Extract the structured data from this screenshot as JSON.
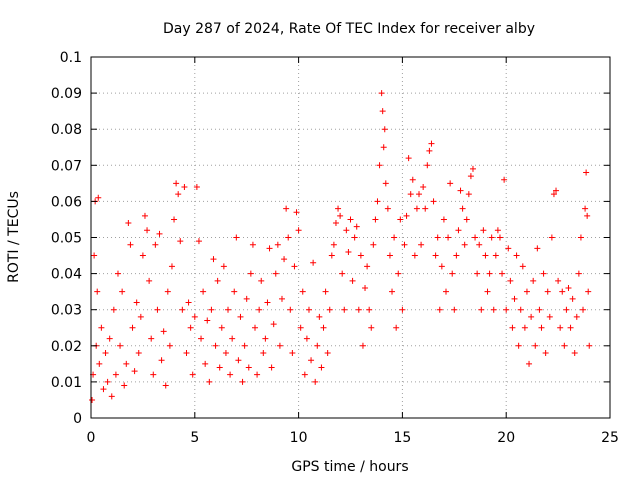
{
  "chart_data": {
    "type": "scatter",
    "title": "Day 287 of 2024, Rate Of TEC Index for receiver alby",
    "xlabel": "GPS time / hours",
    "ylabel": "ROTI / TECUs",
    "xlim": [
      0,
      25
    ],
    "ylim": [
      0,
      0.1
    ],
    "x_ticks": [
      0,
      5,
      10,
      15,
      20,
      25
    ],
    "y_ticks": [
      0,
      0.01,
      0.02,
      0.03,
      0.04,
      0.05,
      0.06,
      0.07,
      0.08,
      0.09,
      0.1
    ],
    "x_tick_labels": [
      "0",
      "5",
      "10",
      "15",
      "20",
      "25"
    ],
    "y_tick_labels": [
      "0",
      "0.01",
      "0.02",
      "0.03",
      "0.04",
      "0.05",
      "0.06",
      "0.07",
      "0.08",
      "0.09",
      "0.1"
    ],
    "grid": true,
    "marker": "+",
    "color": "#ff0000",
    "series": [
      {
        "points": [
          [
            0.05,
            0.005
          ],
          [
            0.1,
            0.012
          ],
          [
            0.15,
            0.045
          ],
          [
            0.2,
            0.06
          ],
          [
            0.25,
            0.02
          ],
          [
            0.3,
            0.035
          ],
          [
            0.35,
            0.061
          ],
          [
            0.4,
            0.015
          ],
          [
            0.5,
            0.025
          ],
          [
            0.6,
            0.008
          ],
          [
            0.7,
            0.018
          ],
          [
            0.8,
            0.01
          ],
          [
            0.9,
            0.022
          ],
          [
            1.0,
            0.006
          ],
          [
            1.1,
            0.03
          ],
          [
            1.2,
            0.012
          ],
          [
            1.3,
            0.04
          ],
          [
            1.4,
            0.02
          ],
          [
            1.5,
            0.035
          ],
          [
            1.6,
            0.009
          ],
          [
            1.7,
            0.015
          ],
          [
            1.8,
            0.054
          ],
          [
            1.9,
            0.048
          ],
          [
            2.0,
            0.025
          ],
          [
            2.1,
            0.013
          ],
          [
            2.2,
            0.032
          ],
          [
            2.3,
            0.018
          ],
          [
            2.4,
            0.028
          ],
          [
            2.5,
            0.045
          ],
          [
            2.6,
            0.056
          ],
          [
            2.7,
            0.052
          ],
          [
            2.8,
            0.038
          ],
          [
            2.9,
            0.022
          ],
          [
            3.0,
            0.012
          ],
          [
            3.1,
            0.048
          ],
          [
            3.2,
            0.03
          ],
          [
            3.3,
            0.051
          ],
          [
            3.4,
            0.016
          ],
          [
            3.5,
            0.024
          ],
          [
            3.6,
            0.009
          ],
          [
            3.7,
            0.035
          ],
          [
            3.8,
            0.02
          ],
          [
            3.9,
            0.042
          ],
          [
            4.0,
            0.055
          ],
          [
            4.1,
            0.065
          ],
          [
            4.2,
            0.062
          ],
          [
            4.3,
            0.049
          ],
          [
            4.4,
            0.03
          ],
          [
            4.5,
            0.064
          ],
          [
            4.6,
            0.018
          ],
          [
            4.7,
            0.032
          ],
          [
            4.8,
            0.025
          ],
          [
            4.9,
            0.012
          ],
          [
            5.0,
            0.028
          ],
          [
            5.1,
            0.064
          ],
          [
            5.2,
            0.049
          ],
          [
            5.3,
            0.022
          ],
          [
            5.4,
            0.035
          ],
          [
            5.5,
            0.015
          ],
          [
            5.6,
            0.027
          ],
          [
            5.7,
            0.01
          ],
          [
            5.8,
            0.03
          ],
          [
            5.9,
            0.044
          ],
          [
            6.0,
            0.02
          ],
          [
            6.1,
            0.038
          ],
          [
            6.2,
            0.014
          ],
          [
            6.3,
            0.025
          ],
          [
            6.4,
            0.042
          ],
          [
            6.5,
            0.018
          ],
          [
            6.6,
            0.03
          ],
          [
            6.7,
            0.012
          ],
          [
            6.8,
            0.022
          ],
          [
            6.9,
            0.035
          ],
          [
            7.0,
            0.05
          ],
          [
            7.1,
            0.016
          ],
          [
            7.2,
            0.028
          ],
          [
            7.3,
            0.01
          ],
          [
            7.4,
            0.02
          ],
          [
            7.5,
            0.033
          ],
          [
            7.6,
            0.014
          ],
          [
            7.7,
            0.04
          ],
          [
            7.8,
            0.048
          ],
          [
            7.9,
            0.025
          ],
          [
            8.0,
            0.012
          ],
          [
            8.1,
            0.03
          ],
          [
            8.2,
            0.038
          ],
          [
            8.3,
            0.018
          ],
          [
            8.4,
            0.022
          ],
          [
            8.5,
            0.032
          ],
          [
            8.6,
            0.047
          ],
          [
            8.7,
            0.014
          ],
          [
            8.8,
            0.026
          ],
          [
            8.9,
            0.04
          ],
          [
            9.0,
            0.048
          ],
          [
            9.1,
            0.02
          ],
          [
            9.2,
            0.033
          ],
          [
            9.3,
            0.044
          ],
          [
            9.4,
            0.058
          ],
          [
            9.5,
            0.05
          ],
          [
            9.6,
            0.03
          ],
          [
            9.7,
            0.018
          ],
          [
            9.8,
            0.042
          ],
          [
            9.9,
            0.057
          ],
          [
            10.0,
            0.052
          ],
          [
            10.1,
            0.025
          ],
          [
            10.2,
            0.035
          ],
          [
            10.3,
            0.012
          ],
          [
            10.4,
            0.022
          ],
          [
            10.5,
            0.03
          ],
          [
            10.6,
            0.016
          ],
          [
            10.7,
            0.043
          ],
          [
            10.8,
            0.01
          ],
          [
            10.9,
            0.02
          ],
          [
            11.0,
            0.028
          ],
          [
            11.1,
            0.014
          ],
          [
            11.2,
            0.025
          ],
          [
            11.3,
            0.035
          ],
          [
            11.4,
            0.018
          ],
          [
            11.5,
            0.03
          ],
          [
            11.6,
            0.045
          ],
          [
            11.7,
            0.048
          ],
          [
            11.8,
            0.054
          ],
          [
            11.9,
            0.058
          ],
          [
            12.0,
            0.056
          ],
          [
            12.1,
            0.04
          ],
          [
            12.2,
            0.03
          ],
          [
            12.3,
            0.052
          ],
          [
            12.4,
            0.046
          ],
          [
            12.5,
            0.055
          ],
          [
            12.6,
            0.038
          ],
          [
            12.7,
            0.05
          ],
          [
            12.8,
            0.053
          ],
          [
            12.9,
            0.03
          ],
          [
            13.0,
            0.045
          ],
          [
            13.1,
            0.02
          ],
          [
            13.2,
            0.036
          ],
          [
            13.3,
            0.042
          ],
          [
            13.4,
            0.03
          ],
          [
            13.5,
            0.025
          ],
          [
            13.6,
            0.048
          ],
          [
            13.7,
            0.055
          ],
          [
            13.8,
            0.06
          ],
          [
            13.9,
            0.07
          ],
          [
            14.0,
            0.09
          ],
          [
            14.05,
            0.085
          ],
          [
            14.1,
            0.075
          ],
          [
            14.15,
            0.08
          ],
          [
            14.2,
            0.065
          ],
          [
            14.3,
            0.058
          ],
          [
            14.4,
            0.045
          ],
          [
            14.5,
            0.035
          ],
          [
            14.6,
            0.05
          ],
          [
            14.7,
            0.025
          ],
          [
            14.8,
            0.04
          ],
          [
            14.9,
            0.055
          ],
          [
            15.0,
            0.03
          ],
          [
            15.1,
            0.048
          ],
          [
            15.2,
            0.056
          ],
          [
            15.3,
            0.072
          ],
          [
            15.4,
            0.062
          ],
          [
            15.5,
            0.066
          ],
          [
            15.6,
            0.045
          ],
          [
            15.7,
            0.058
          ],
          [
            15.8,
            0.062
          ],
          [
            15.9,
            0.048
          ],
          [
            16.0,
            0.064
          ],
          [
            16.1,
            0.058
          ],
          [
            16.2,
            0.07
          ],
          [
            16.3,
            0.074
          ],
          [
            16.4,
            0.076
          ],
          [
            16.5,
            0.06
          ],
          [
            16.6,
            0.045
          ],
          [
            16.7,
            0.05
          ],
          [
            16.8,
            0.03
          ],
          [
            16.9,
            0.042
          ],
          [
            17.0,
            0.055
          ],
          [
            17.1,
            0.035
          ],
          [
            17.2,
            0.05
          ],
          [
            17.3,
            0.065
          ],
          [
            17.4,
            0.04
          ],
          [
            17.5,
            0.03
          ],
          [
            17.6,
            0.045
          ],
          [
            17.7,
            0.052
          ],
          [
            17.8,
            0.063
          ],
          [
            17.9,
            0.058
          ],
          [
            18.0,
            0.048
          ],
          [
            18.1,
            0.055
          ],
          [
            18.2,
            0.062
          ],
          [
            18.3,
            0.067
          ],
          [
            18.4,
            0.069
          ],
          [
            18.5,
            0.05
          ],
          [
            18.6,
            0.04
          ],
          [
            18.7,
            0.048
          ],
          [
            18.8,
            0.03
          ],
          [
            18.9,
            0.052
          ],
          [
            19.0,
            0.045
          ],
          [
            19.1,
            0.035
          ],
          [
            19.2,
            0.04
          ],
          [
            19.3,
            0.05
          ],
          [
            19.4,
            0.03
          ],
          [
            19.5,
            0.045
          ],
          [
            19.6,
            0.052
          ],
          [
            19.7,
            0.05
          ],
          [
            19.8,
            0.04
          ],
          [
            19.9,
            0.066
          ],
          [
            20.0,
            0.03
          ],
          [
            20.1,
            0.047
          ],
          [
            20.2,
            0.038
          ],
          [
            20.3,
            0.025
          ],
          [
            20.4,
            0.033
          ],
          [
            20.5,
            0.045
          ],
          [
            20.6,
            0.02
          ],
          [
            20.7,
            0.03
          ],
          [
            20.8,
            0.042
          ],
          [
            20.9,
            0.025
          ],
          [
            21.0,
            0.035
          ],
          [
            21.1,
            0.015
          ],
          [
            21.2,
            0.028
          ],
          [
            21.3,
            0.038
          ],
          [
            21.4,
            0.02
          ],
          [
            21.5,
            0.047
          ],
          [
            21.6,
            0.03
          ],
          [
            21.7,
            0.025
          ],
          [
            21.8,
            0.04
          ],
          [
            21.9,
            0.018
          ],
          [
            22.0,
            0.035
          ],
          [
            22.1,
            0.028
          ],
          [
            22.2,
            0.05
          ],
          [
            22.3,
            0.062
          ],
          [
            22.4,
            0.063
          ],
          [
            22.5,
            0.038
          ],
          [
            22.6,
            0.025
          ],
          [
            22.7,
            0.035
          ],
          [
            22.8,
            0.02
          ],
          [
            22.9,
            0.03
          ],
          [
            23.0,
            0.036
          ],
          [
            23.1,
            0.025
          ],
          [
            23.2,
            0.033
          ],
          [
            23.3,
            0.018
          ],
          [
            23.4,
            0.028
          ],
          [
            23.5,
            0.04
          ],
          [
            23.6,
            0.05
          ],
          [
            23.7,
            0.03
          ],
          [
            23.8,
            0.058
          ],
          [
            23.85,
            0.068
          ],
          [
            23.9,
            0.056
          ],
          [
            23.95,
            0.035
          ],
          [
            24.0,
            0.02
          ]
        ]
      }
    ]
  }
}
